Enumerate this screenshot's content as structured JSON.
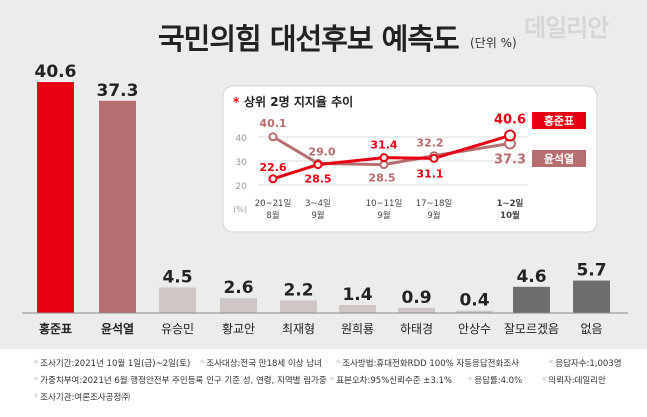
{
  "header": {
    "title": "국민의힘 대선후보 예측도",
    "unit": "(단위 %)",
    "watermark": "데일리안"
  },
  "colors": {
    "hong": "#e60012",
    "yoon": "#b76e70",
    "others": "#cfc6c6",
    "none_group": "#6e6e6e",
    "background": "#ececec"
  },
  "chart_data": [
    {
      "type": "bar",
      "categories": [
        "홍준표",
        "윤석열",
        "유승민",
        "황교안",
        "최재형",
        "원희룡",
        "하태경",
        "안상수",
        "잘모르겠음",
        "없음"
      ],
      "values": [
        40.6,
        37.3,
        4.5,
        2.6,
        2.2,
        1.4,
        0.9,
        0.4,
        4.6,
        5.7
      ],
      "value_labels": [
        "40.6",
        "37.3",
        "4.5",
        "2.6",
        "2.2",
        "1.4",
        "0.9",
        "0.4",
        "4.6",
        "5.7"
      ],
      "title": "국민의힘 대선후보 예측도",
      "ylabel": "(단위 %)",
      "ylim": [
        0,
        45
      ]
    },
    {
      "type": "line",
      "title": "상위 2명 지지율 추이",
      "title_marker": "*",
      "x_labels": [
        [
          "20~21일",
          "8월"
        ],
        [
          "3~4일",
          "9월"
        ],
        [
          "10~11일",
          "9월"
        ],
        [
          "17~18일",
          "9월"
        ],
        [
          "1~2일",
          "10월"
        ]
      ],
      "x_unit": "(%)",
      "yticks": [
        "40",
        "30",
        "20"
      ],
      "ylim": [
        20,
        45
      ],
      "series": [
        {
          "name": "홍준표",
          "values": [
            22.6,
            28.5,
            31.4,
            31.1,
            40.6
          ],
          "labels": [
            "22.6",
            "28.5",
            "31.4",
            "31.1",
            "40.6"
          ]
        },
        {
          "name": "윤석열",
          "values": [
            40.1,
            29.0,
            28.5,
            32.2,
            37.3
          ],
          "labels": [
            "40.1",
            "29.0",
            "28.5",
            "32.2",
            "37.3"
          ]
        }
      ]
    }
  ],
  "footer": {
    "notes": [
      [
        "조사기간:2021년 10월 1일(금)~2일(토)",
        "조사대상:전국 만18세 이상 남녀",
        "조사방법:휴대전화RDD 100% 자동응답전화조사",
        "응답자수:1,003명"
      ],
      [
        "가중치부여:2021년 6월 행정안전부 주민등록 인구 기준 성, 연령, 지역별 림가중",
        "표본오차:95%신뢰수준 ±3.1%",
        "응답률:4.0%",
        "의뢰자:데일리안"
      ],
      [
        "조사기관:여론조사공정㈜"
      ]
    ]
  }
}
